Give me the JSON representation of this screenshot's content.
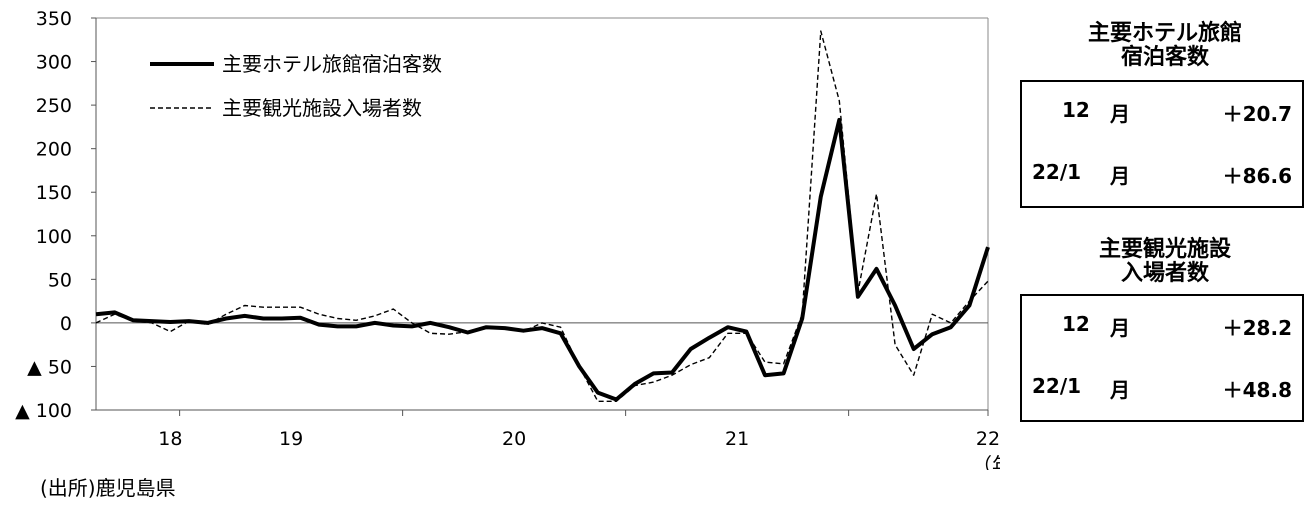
{
  "source_label": "(出所)鹿児島県",
  "x_unit_label": "（年）",
  "panels": [
    {
      "title_lines": [
        "主要ホテル旅館",
        "宿泊客数"
      ],
      "rows": [
        {
          "period": "12",
          "unit": "月",
          "value": "＋20.7"
        },
        {
          "period": "22/1",
          "unit": "月",
          "value": "＋86.6"
        }
      ]
    },
    {
      "title_lines": [
        "主要観光施設",
        "入場者数"
      ],
      "rows": [
        {
          "period": "12",
          "unit": "月",
          "value": "＋28.2"
        },
        {
          "period": "22/1",
          "unit": "月",
          "value": "＋48.8"
        }
      ]
    }
  ],
  "chart_data": {
    "type": "line",
    "title": "",
    "xlabel": "（年）",
    "ylabel": "",
    "ylim": [
      -100,
      350
    ],
    "yticks": [
      350,
      300,
      250,
      200,
      150,
      100,
      50,
      0,
      -50,
      -100
    ],
    "ytick_labels": [
      "350",
      "300",
      "250",
      "200",
      "150",
      "100",
      "50",
      "0",
      "▲ 50",
      "▲ 100"
    ],
    "x_year_labels": [
      "18",
      "19",
      "20",
      "21",
      "22"
    ],
    "x_start": "2017-08",
    "grid": false,
    "legend_position": "top-left",
    "series": [
      {
        "name": "主要ホテル旅館宿泊客数",
        "style": "solid-thick",
        "color": "#000000",
        "values": [
          10,
          12,
          3,
          2,
          1,
          2,
          0,
          5,
          8,
          5,
          5,
          6,
          -2,
          -4,
          -4,
          0,
          -3,
          -4,
          0,
          -5,
          -11,
          -5,
          -6,
          -9,
          -6,
          -12,
          -50,
          -80,
          -88,
          -70,
          -58,
          -57,
          -30,
          -17,
          -5,
          -10,
          -60,
          -58,
          5,
          145,
          233,
          30,
          62,
          20,
          -30,
          -13,
          -5,
          20,
          87
        ]
      },
      {
        "name": "主要観光施設入場者数",
        "style": "dashed",
        "color": "#000000",
        "values": [
          0,
          10,
          2,
          0,
          -10,
          2,
          -2,
          10,
          20,
          18,
          18,
          18,
          10,
          5,
          3,
          8,
          16,
          0,
          -12,
          -13,
          -10,
          -5,
          -5,
          -10,
          0,
          -5,
          -50,
          -90,
          -90,
          -72,
          -68,
          -60,
          -48,
          -40,
          -12,
          -12,
          -45,
          -47,
          10,
          335,
          255,
          35,
          148,
          -25,
          -60,
          10,
          0,
          25,
          48
        ]
      }
    ]
  }
}
